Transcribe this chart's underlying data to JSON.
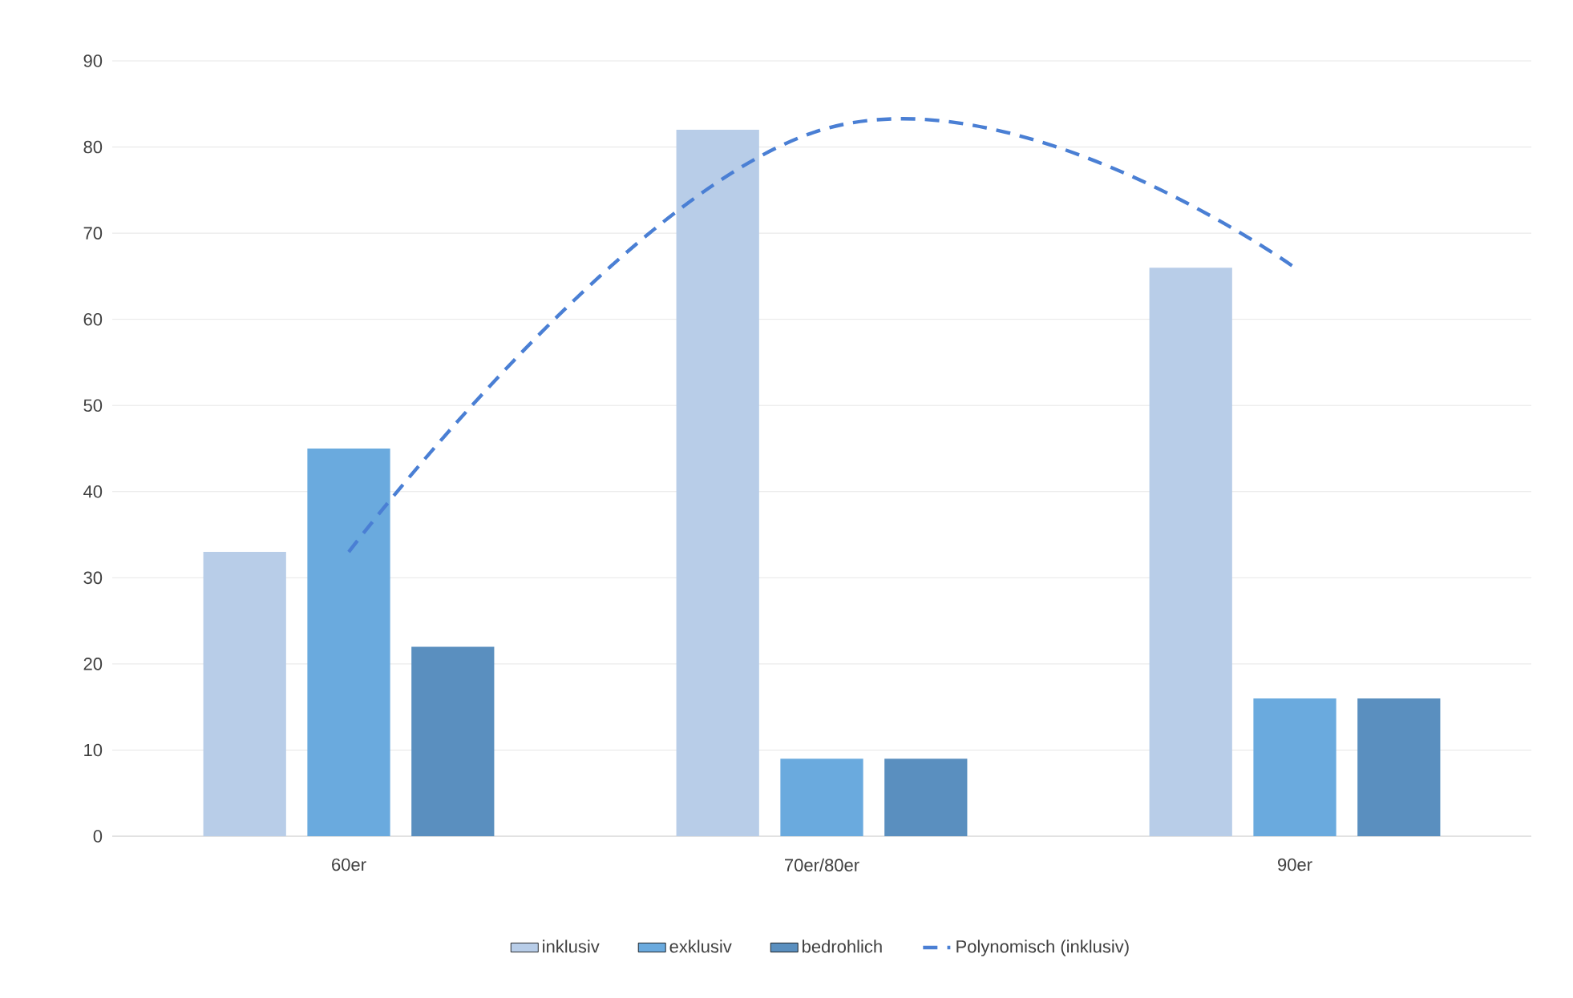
{
  "chart_data": {
    "type": "bar",
    "categories": [
      "60er",
      "70er/80er",
      "90er"
    ],
    "series": [
      {
        "name": "inklusiv",
        "color": "#b8cde8",
        "values": [
          33,
          82,
          66
        ]
      },
      {
        "name": "exklusiv",
        "color": "#6aaade",
        "values": [
          45,
          9,
          16
        ]
      },
      {
        "name": "bedrohlich",
        "color": "#5a8fbf",
        "values": [
          22,
          9,
          16
        ]
      },
      {
        "name": "Polynomisch (inklusiv)",
        "type": "line",
        "line_style": "dashed",
        "color": "#4a7fd4",
        "values": [
          33,
          82,
          66
        ]
      }
    ],
    "ylim": [
      0,
      90
    ],
    "yticks": [
      0,
      10,
      20,
      30,
      40,
      50,
      60,
      70,
      80,
      90
    ],
    "grid": "y",
    "legend": "bottom"
  }
}
